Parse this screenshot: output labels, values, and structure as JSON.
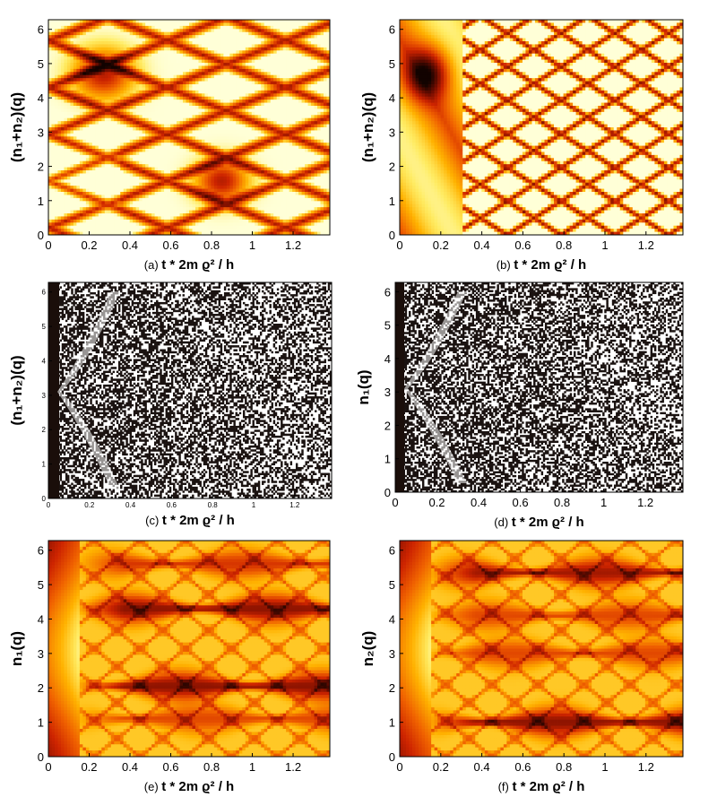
{
  "chart_data": [
    {
      "id": "a",
      "type": "heatmap",
      "panel_label": "(a)",
      "xlabel": "t * 2m ϱ² / h",
      "ylabel": "(n₁+n₂)(q)",
      "x_ticks": [
        "0",
        "0.2",
        "0.4",
        "0.6",
        "0.8",
        "1",
        "1.2"
      ],
      "y_ticks": [
        "0",
        "1",
        "2",
        "3",
        "4",
        "5",
        "6"
      ],
      "xlim": [
        0,
        1.38
      ],
      "ylim": [
        0,
        6.28
      ],
      "colormap": "hot",
      "pattern": "wide interference lattice, dark spots near (0.27, 4.7) and (0.85, 1.57)"
    },
    {
      "id": "b",
      "type": "heatmap",
      "panel_label": "(b)",
      "xlabel": "t * 2m ϱ² / h",
      "ylabel": "(n₁+n₂)(q)",
      "x_ticks": [
        "0",
        "0.2",
        "0.4",
        "0.6",
        "0.8",
        "1",
        "1.2"
      ],
      "y_ticks": [
        "0",
        "1",
        "2",
        "3",
        "4",
        "5",
        "6"
      ],
      "xlim": [
        0,
        1.38
      ],
      "ylim": [
        0,
        6.28
      ],
      "colormap": "hot",
      "pattern": "dense crossing diagonal lines, dark spot near (0.15, 4.7)"
    },
    {
      "id": "c",
      "type": "heatmap",
      "panel_label": "(c)",
      "xlabel": "t * 2m ϱ² / h",
      "ylabel": "(n₁+n₂)(q)",
      "x_ticks": [
        "0",
        "0.2",
        "0.4",
        "0.6",
        "0.8",
        "1",
        "1.2"
      ],
      "y_ticks": [
        "0",
        "1",
        "2",
        "3",
        "4",
        "5",
        "6"
      ],
      "xlim": [
        0,
        1.38
      ],
      "ylim": [
        0,
        6.28
      ],
      "colormap": "gray",
      "pattern": "fine black and white speckle with diagonal stripes"
    },
    {
      "id": "d",
      "type": "heatmap",
      "panel_label": "(d)",
      "xlabel": "t * 2m ϱ² / h",
      "ylabel": "n₁(q)",
      "x_ticks": [
        "0",
        "0.2",
        "0.4",
        "0.6",
        "0.8",
        "1",
        "1.2"
      ],
      "y_ticks": [
        "0",
        "1",
        "2",
        "3",
        "4",
        "5",
        "6"
      ],
      "xlim": [
        0,
        1.38
      ],
      "ylim": [
        0,
        6.28
      ],
      "colormap": "gray",
      "pattern": "fine black and white speckle, bright fan near (0.05, 3.1)"
    },
    {
      "id": "e",
      "type": "heatmap",
      "panel_label": "(e)",
      "xlabel": "t * 2m ϱ² / h",
      "ylabel": "n₁(q)",
      "x_ticks": [
        "0",
        "0.2",
        "0.4",
        "0.6",
        "0.8",
        "1",
        "1.2"
      ],
      "y_ticks": [
        "0",
        "1",
        "2",
        "3",
        "4",
        "5",
        "6"
      ],
      "xlim": [
        0,
        1.38
      ],
      "ylim": [
        0,
        6.28
      ],
      "colormap": "hot",
      "pattern": "dark horizontal bands near q = 4.3 and 2.0 with crossing lines"
    },
    {
      "id": "f",
      "type": "heatmap",
      "panel_label": "(f)",
      "xlabel": "t * 2m ϱ² / h",
      "ylabel": "n₂(q)",
      "x_ticks": [
        "0",
        "0.2",
        "0.4",
        "0.6",
        "0.8",
        "1",
        "1.2"
      ],
      "y_ticks": [
        "0",
        "1",
        "2",
        "3",
        "4",
        "5",
        "6"
      ],
      "xlim": [
        0,
        1.38
      ],
      "ylim": [
        0,
        6.28
      ],
      "colormap": "hot",
      "pattern": "dark horizontal bands near q = 5.3 and 1.0 with crossing lines"
    }
  ]
}
